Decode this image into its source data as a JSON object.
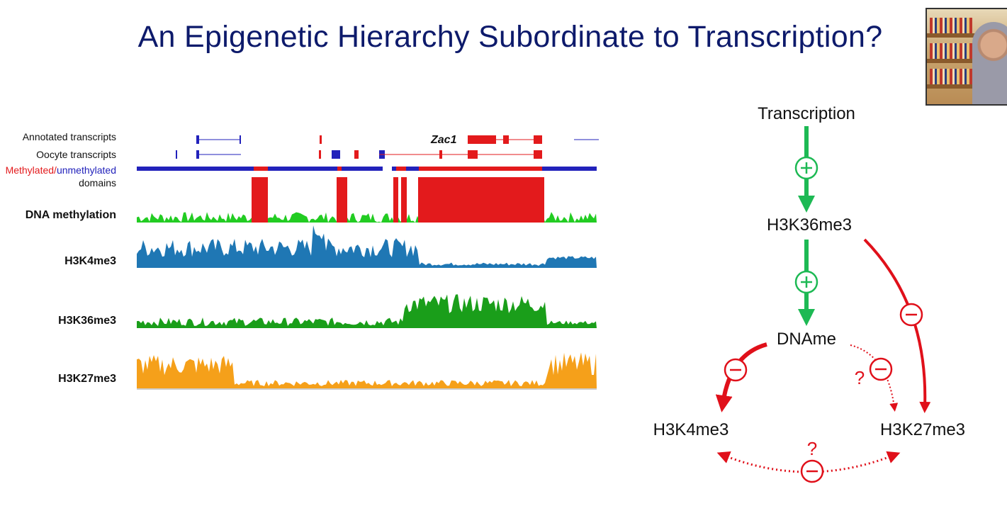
{
  "title": "An Epigenetic Hierarchy Subordinate to Transcription?",
  "webcam": {
    "description_icon": "presenter-video-thumbnail"
  },
  "genome_browser": {
    "gene_label": "Zac1",
    "tracks": {
      "annotated": "Annotated transcripts",
      "oocyte": "Oocyte transcripts",
      "domains_methylated": "Methylated/",
      "domains_unmethylated": "unmethylated",
      "domains_suffix": "domains",
      "dna_meth": "DNA methylation",
      "h3k4": "H3K4me3",
      "h3k36": "H3K36me3",
      "h3k27": "H3K27me3"
    },
    "colors": {
      "methylated": "#e31a1c",
      "unmethylated": "#2222bb",
      "dna_meth_low": "#22cc22",
      "h3k4": "#1f77b4",
      "h3k36": "#1a9e1a",
      "h3k27": "#f5a01a"
    }
  },
  "diagram": {
    "nodes": {
      "transcription": "Transcription",
      "h3k36": "H3K36me3",
      "dname": "DNAme",
      "h3k4": "H3K4me3",
      "h3k27": "H3K27me3"
    },
    "question_mark": "?",
    "colors": {
      "activate": "#1db954",
      "repress": "#e0101a"
    }
  }
}
